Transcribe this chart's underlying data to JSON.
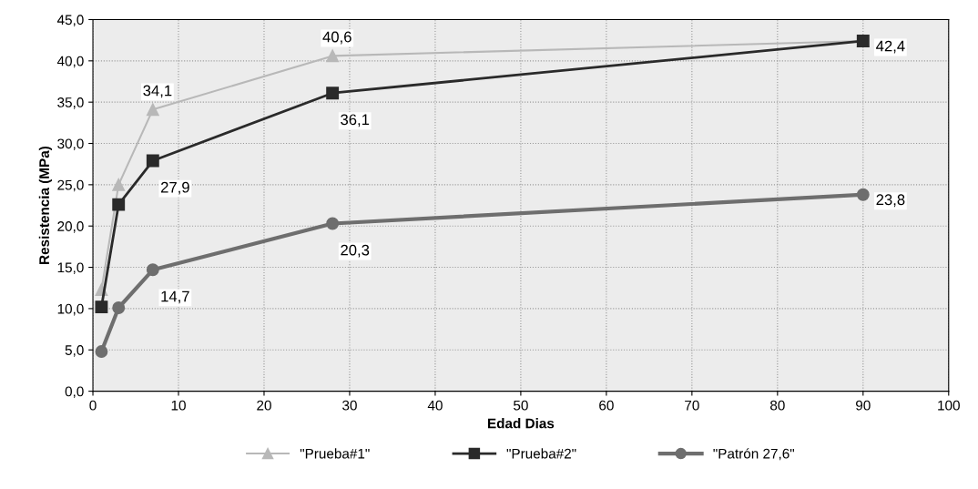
{
  "chart_data": {
    "type": "line",
    "xlabel": "Edad Dias",
    "ylabel": "Resistencia (MPa)",
    "x": [
      1,
      3,
      7,
      28,
      90
    ],
    "series": [
      {
        "name": "\"Prueba#1\"",
        "color": "#b8b8b8",
        "marker": "triangle",
        "values": [
          12.3,
          25.0,
          34.1,
          40.6,
          42.4
        ],
        "value_labels": [
          null,
          null,
          "34,1",
          "40,6",
          null
        ]
      },
      {
        "name": "\"Prueba#2\"",
        "color": "#2a2a2a",
        "marker": "square",
        "values": [
          10.2,
          22.6,
          27.9,
          36.1,
          42.4
        ],
        "value_labels": [
          null,
          null,
          "27,9",
          "36,1",
          "42,4"
        ]
      },
      {
        "name": "\"Patrón 27,6\"",
        "color": "#6e6e6e",
        "marker": "circle",
        "values": [
          4.8,
          10.1,
          14.7,
          20.3,
          23.8
        ],
        "value_labels": [
          null,
          null,
          "14,7",
          "20,3",
          "23,8"
        ]
      }
    ],
    "xlim": [
      0,
      100
    ],
    "xticks": [
      0,
      10,
      20,
      30,
      40,
      50,
      60,
      70,
      80,
      90,
      100
    ],
    "ylim": [
      0,
      45
    ],
    "yticks": [
      {
        "value": 0,
        "label": "0,0"
      },
      {
        "value": 5,
        "label": "5,0"
      },
      {
        "value": 10,
        "label": "10,0"
      },
      {
        "value": 15,
        "label": "15,0"
      },
      {
        "value": 20,
        "label": "20,0"
      },
      {
        "value": 25,
        "label": "25,0"
      },
      {
        "value": 30,
        "label": "30,0"
      },
      {
        "value": 35,
        "label": "35,0"
      },
      {
        "value": 40,
        "label": "40,0"
      },
      {
        "value": 45,
        "label": "45,0"
      }
    ],
    "grid": true,
    "legend": "bottom",
    "line_style": "solid"
  }
}
